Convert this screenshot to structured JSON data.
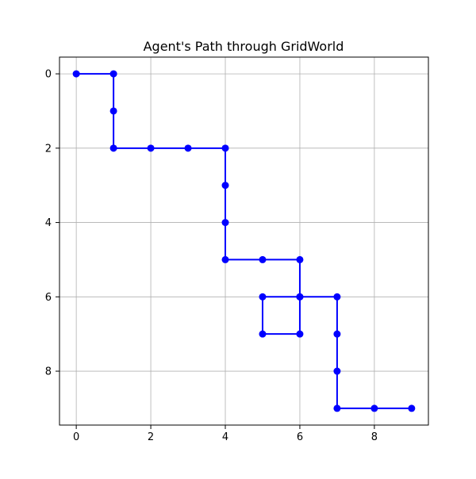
{
  "chart_data": {
    "type": "line",
    "title": "Agent's Path through GridWorld",
    "xlabel": "",
    "ylabel": "",
    "xlim": [
      -0.45,
      9.45
    ],
    "ylim": [
      9.45,
      -0.45
    ],
    "y_inverted": true,
    "xticks": [
      0,
      2,
      4,
      6,
      8
    ],
    "yticks": [
      0,
      2,
      4,
      6,
      8
    ],
    "grid": true,
    "legend": "none",
    "marker": "circle",
    "series": [
      {
        "color": "#0000ff",
        "points": [
          [
            0,
            0
          ],
          [
            1,
            0
          ],
          [
            1,
            1
          ],
          [
            1,
            2
          ],
          [
            2,
            2
          ],
          [
            3,
            2
          ],
          [
            4,
            2
          ],
          [
            4,
            3
          ],
          [
            4,
            4
          ],
          [
            4,
            5
          ],
          [
            5,
            5
          ],
          [
            6,
            5
          ],
          [
            6,
            6
          ],
          [
            5,
            6
          ],
          [
            5,
            7
          ],
          [
            6,
            7
          ],
          [
            6,
            6
          ],
          [
            7,
            6
          ],
          [
            7,
            7
          ],
          [
            7,
            8
          ],
          [
            7,
            9
          ],
          [
            8,
            9
          ],
          [
            9,
            9
          ]
        ]
      }
    ]
  }
}
